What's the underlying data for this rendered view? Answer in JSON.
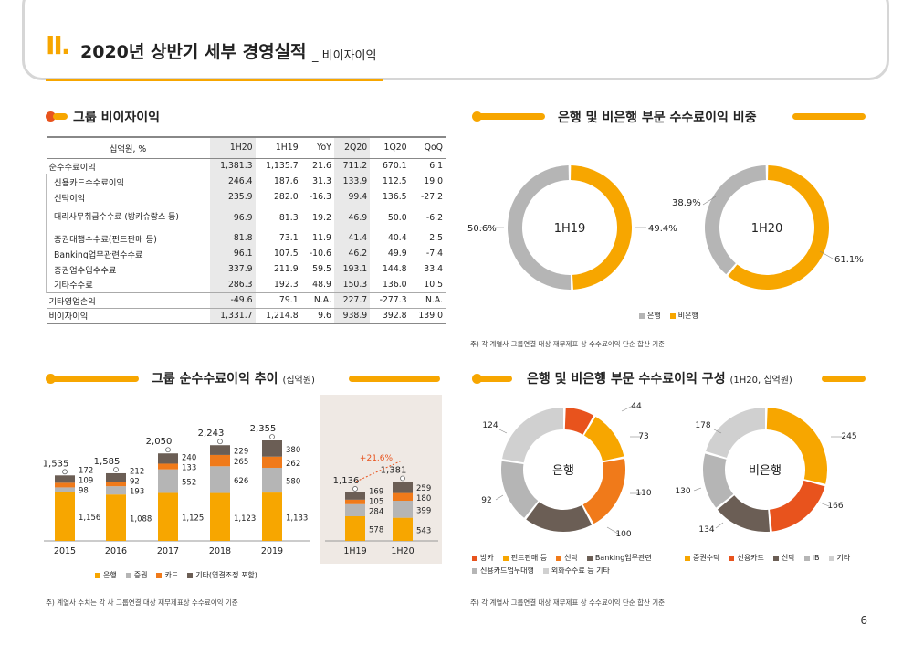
{
  "header": {
    "roman": "II.",
    "title": "2020년 상반기 세부 경영실적",
    "subtitle": "_ 비이자이익"
  },
  "page_number": "6",
  "colors": {
    "orange": "#f7a600",
    "gray": "#b5b5b5",
    "red": "#e8531d",
    "brown": "#6b5e55",
    "rose": "#e8531d",
    "light_gray": "#d0d0d0"
  },
  "table_section": {
    "title": "그룹 비이자이익",
    "headers": [
      "십억원, %",
      "1H20",
      "1H19",
      "YoY",
      "2Q20",
      "1Q20",
      "QoQ"
    ],
    "rows": [
      {
        "label": "순수수료이익",
        "values": [
          "1,381.3",
          "1,135.7",
          "21.6",
          "711.2",
          "670.1",
          "6.1"
        ],
        "kind": "main"
      },
      {
        "label": "신용카드수수료이익",
        "values": [
          "246.4",
          "187.6",
          "31.3",
          "133.9",
          "112.5",
          "19.0"
        ],
        "kind": "sub"
      },
      {
        "label": "신탁이익",
        "values": [
          "235.9",
          "282.0",
          "-16.3",
          "99.4",
          "136.5",
          "-27.2"
        ],
        "kind": "sub"
      },
      {
        "label": "대리사무취급수수료 (방카슈랑스 등)",
        "values": [
          "96.9",
          "81.3",
          "19.2",
          "46.9",
          "50.0",
          "-6.2"
        ],
        "kind": "sub-tall"
      },
      {
        "label": "증권대행수수료(펀드판매 등)",
        "values": [
          "81.8",
          "73.1",
          "11.9",
          "41.4",
          "40.4",
          "2.5"
        ],
        "kind": "sub"
      },
      {
        "label": "Banking업무관련수수료",
        "values": [
          "96.1",
          "107.5",
          "-10.6",
          "46.2",
          "49.9",
          "-7.4"
        ],
        "kind": "sub"
      },
      {
        "label": "증권업수입수수료",
        "values": [
          "337.9",
          "211.9",
          "59.5",
          "193.1",
          "144.8",
          "33.4"
        ],
        "kind": "sub"
      },
      {
        "label": "기타수수료",
        "values": [
          "286.3",
          "192.3",
          "48.9",
          "150.3",
          "136.0",
          "10.5"
        ],
        "kind": "sub"
      },
      {
        "label": "기타영업손익",
        "values": [
          "-49.6",
          "79.1",
          "N.A.",
          "227.7",
          "-277.3",
          "N.A."
        ],
        "kind": "main"
      },
      {
        "label": "비이자이익",
        "values": [
          "1,331.7",
          "1,214.8",
          "9.6",
          "938.9",
          "392.8",
          "139.0"
        ],
        "kind": "last"
      }
    ]
  },
  "share_section": {
    "title": "은행 및 비은행 부문 수수료이익 비중",
    "legend": [
      "은행",
      "비은행"
    ],
    "note": "주) 각 계열사 그룹연결 대상 재무제표 상 수수료이익 단순 합산 기준"
  },
  "trend_section": {
    "title": "그룹 순수수료이익 추이",
    "title_unit": "(십억원)",
    "legend": [
      "은행",
      "증권",
      "카드",
      "기타(연결조정 포함)"
    ],
    "growth_label": "+21.6%",
    "note": "주) 계열사 수치는 각 사 그룹연결 대상 재무제표상 수수료이익 기준"
  },
  "mix_section": {
    "title": "은행 및 비은행 부문 수수료이익 구성",
    "title_unit": "(1H20, 십억원)",
    "bank_legend": [
      "방카",
      "펀드판매 등",
      "신탁",
      "Banking업무관련",
      "신용카드업무대행",
      "외화수수료 등 기타"
    ],
    "nonbank_legend": [
      "증권수탁",
      "신용카드",
      "신탁",
      "IB",
      "기타"
    ],
    "note": "주) 각 계열사 그룹연결 대상 재무제표 상 수수료이익 단순 합산 기준"
  },
  "chart_data": [
    {
      "type": "pie",
      "variant": "donut",
      "center_label": "1H19",
      "categories": [
        "은행",
        "비은행"
      ],
      "values": [
        50.6,
        49.4
      ],
      "labels": [
        "50.6%",
        "49.4%"
      ]
    },
    {
      "type": "pie",
      "variant": "donut",
      "center_label": "1H20",
      "categories": [
        "은행",
        "비은행"
      ],
      "values": [
        38.9,
        61.1
      ],
      "labels": [
        "38.9%",
        "61.1%"
      ]
    },
    {
      "type": "bar",
      "stacked": true,
      "categories": [
        "2015",
        "2016",
        "2017",
        "2018",
        "2019"
      ],
      "series": [
        {
          "name": "은행",
          "values": [
            1156,
            1088,
            1125,
            1123,
            1133
          ]
        },
        {
          "name": "증권",
          "values": [
            98,
            193,
            552,
            626,
            580
          ]
        },
        {
          "name": "카드",
          "values": [
            109,
            92,
            133,
            265,
            262
          ]
        },
        {
          "name": "기타(연결조정 포함)",
          "values": [
            172,
            212,
            240,
            229,
            380
          ]
        }
      ],
      "totals": [
        1535,
        1585,
        2050,
        2243,
        2355
      ],
      "total_labels": [
        "1,535",
        "1,585",
        "2,050",
        "2,243",
        "2,355"
      ],
      "value_labels": [
        [
          "1,156",
          "98",
          "109",
          "172"
        ],
        [
          "1,088",
          "193",
          "92",
          "212"
        ],
        [
          "1,125",
          "552",
          "133",
          "240"
        ],
        [
          "1,123",
          "626",
          "265",
          "229"
        ],
        [
          "1,133",
          "580",
          "262",
          "380"
        ]
      ]
    },
    {
      "type": "bar",
      "stacked": true,
      "categories": [
        "1H19",
        "1H20"
      ],
      "series": [
        {
          "name": "은행",
          "values": [
            578,
            543
          ]
        },
        {
          "name": "증권",
          "values": [
            284,
            399
          ]
        },
        {
          "name": "카드",
          "values": [
            105,
            180
          ]
        },
        {
          "name": "기타(연결조정 포함)",
          "values": [
            169,
            259
          ]
        }
      ],
      "totals": [
        1136,
        1381
      ],
      "total_labels": [
        "1,136",
        "1,381"
      ],
      "value_labels": [
        [
          "578",
          "284",
          "105",
          "169"
        ],
        [
          "543",
          "399",
          "180",
          "259"
        ]
      ]
    },
    {
      "type": "pie",
      "variant": "donut",
      "center_label": "은행",
      "categories": [
        "방카",
        "펀드판매 등",
        "신탁",
        "Banking업무관련",
        "신용카드업무대행",
        "외화수수료 등 기타"
      ],
      "values": [
        44,
        73,
        110,
        100,
        92,
        124
      ],
      "labels": [
        "44",
        "73",
        "110",
        "100",
        "92",
        "124"
      ]
    },
    {
      "type": "pie",
      "variant": "donut",
      "center_label": "비은행",
      "categories": [
        "증권수탁",
        "신용카드",
        "신탁",
        "IB",
        "기타"
      ],
      "values": [
        245,
        166,
        134,
        130,
        178
      ],
      "labels": [
        "245",
        "166",
        "134",
        "130",
        "178"
      ]
    }
  ]
}
